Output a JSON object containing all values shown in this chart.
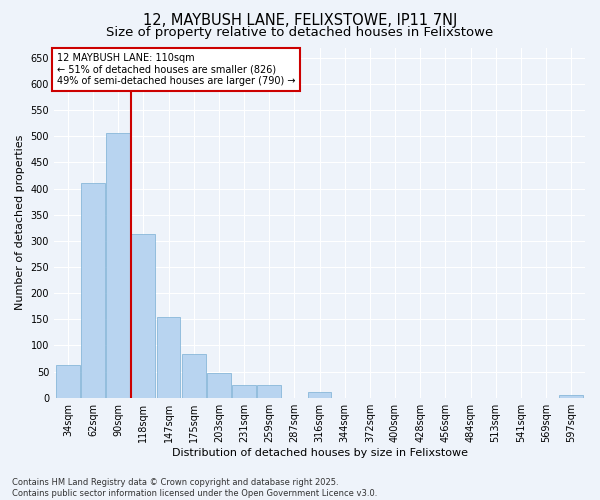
{
  "title": "12, MAYBUSH LANE, FELIXSTOWE, IP11 7NJ",
  "subtitle": "Size of property relative to detached houses in Felixstowe",
  "xlabel": "Distribution of detached houses by size in Felixstowe",
  "ylabel": "Number of detached properties",
  "categories": [
    "34sqm",
    "62sqm",
    "90sqm",
    "118sqm",
    "147sqm",
    "175sqm",
    "203sqm",
    "231sqm",
    "259sqm",
    "287sqm",
    "316sqm",
    "344sqm",
    "372sqm",
    "400sqm",
    "428sqm",
    "456sqm",
    "484sqm",
    "513sqm",
    "541sqm",
    "569sqm",
    "597sqm"
  ],
  "values": [
    62,
    410,
    507,
    313,
    155,
    83,
    47,
    25,
    25,
    0,
    10,
    0,
    0,
    0,
    0,
    0,
    0,
    0,
    0,
    0,
    5
  ],
  "bar_color": "#b8d4f0",
  "bar_edge_color": "#7aafd4",
  "vline_color": "#cc0000",
  "annotation_text": "12 MAYBUSH LANE: 110sqm\n← 51% of detached houses are smaller (826)\n49% of semi-detached houses are larger (790) →",
  "annotation_box_color": "#ffffff",
  "annotation_box_edge": "#cc0000",
  "footer_line1": "Contains HM Land Registry data © Crown copyright and database right 2025.",
  "footer_line2": "Contains public sector information licensed under the Open Government Licence v3.0.",
  "background_color": "#eef3fa",
  "ylim": [
    0,
    670
  ],
  "yticks": [
    0,
    50,
    100,
    150,
    200,
    250,
    300,
    350,
    400,
    450,
    500,
    550,
    600,
    650
  ],
  "title_fontsize": 10.5,
  "subtitle_fontsize": 9.5,
  "axis_label_fontsize": 8,
  "tick_fontsize": 7,
  "annotation_fontsize": 7,
  "footer_fontsize": 6
}
